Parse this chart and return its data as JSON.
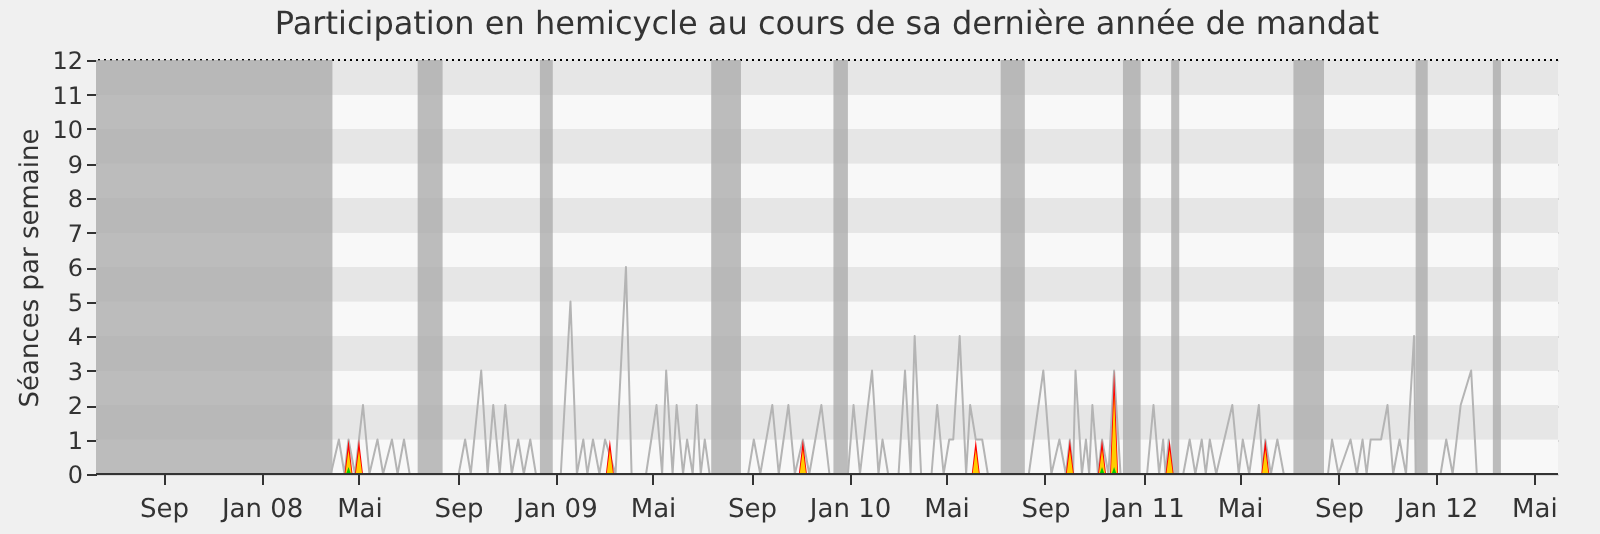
{
  "chart_data": {
    "type": "line",
    "title": "Participation en hemicycle au cours de sa dernière année de mandat",
    "ylabel": "Séances par semaine",
    "xlim": [
      "2007-06-09",
      "2012-05-31"
    ],
    "ylim": [
      0,
      12
    ],
    "yticks": [
      0,
      1,
      2,
      3,
      4,
      5,
      6,
      7,
      8,
      9,
      10,
      11,
      12
    ],
    "xticks": [
      {
        "value": "2007-09-01",
        "label": "Sep"
      },
      {
        "value": "2008-01-01",
        "label": "Jan 08"
      },
      {
        "value": "2008-05-01",
        "label": "Mai"
      },
      {
        "value": "2008-09-01",
        "label": "Sep"
      },
      {
        "value": "2009-01-01",
        "label": "Jan 09"
      },
      {
        "value": "2009-05-01",
        "label": "Mai"
      },
      {
        "value": "2009-09-01",
        "label": "Sep"
      },
      {
        "value": "2010-01-01",
        "label": "Jan 10"
      },
      {
        "value": "2010-05-01",
        "label": "Mai"
      },
      {
        "value": "2010-09-01",
        "label": "Sep"
      },
      {
        "value": "2011-01-01",
        "label": "Jan 11"
      },
      {
        "value": "2011-05-01",
        "label": "Mai"
      },
      {
        "value": "2011-09-01",
        "label": "Sep"
      },
      {
        "value": "2012-01-01",
        "label": "Jan 12"
      },
      {
        "value": "2012-05-01",
        "label": "Mai"
      }
    ],
    "grid": "y",
    "bands": [
      {
        "axis": "x",
        "from": "2007-06-09",
        "to": "2008-03-29",
        "color": "#a8a8a8"
      },
      {
        "axis": "x",
        "from": "2008-07-13",
        "to": "2008-08-13",
        "color": "#a8a8a8"
      },
      {
        "axis": "x",
        "from": "2008-12-12",
        "to": "2008-12-28",
        "color": "#a8a8a8"
      },
      {
        "axis": "x",
        "from": "2009-07-13",
        "to": "2009-08-19",
        "color": "#a8a8a8"
      },
      {
        "axis": "x",
        "from": "2009-12-12",
        "to": "2009-12-30",
        "color": "#a8a8a8"
      },
      {
        "axis": "x",
        "from": "2010-07-08",
        "to": "2010-08-07",
        "color": "#a8a8a8"
      },
      {
        "axis": "x",
        "from": "2010-12-07",
        "to": "2010-12-29",
        "color": "#a8a8a8"
      },
      {
        "axis": "x",
        "from": "2011-02-05",
        "to": "2011-02-15",
        "color": "#a8a8a8"
      },
      {
        "axis": "x",
        "from": "2011-07-07",
        "to": "2011-08-14",
        "color": "#a8a8a8"
      },
      {
        "axis": "x",
        "from": "2011-12-06",
        "to": "2011-12-21",
        "color": "#a8a8a8"
      },
      {
        "axis": "x",
        "from": "2012-03-11",
        "to": "2012-03-21",
        "color": "#a8a8a8"
      }
    ],
    "series": [
      {
        "color": "#b4b4b4",
        "x": [
          "2007-06-09",
          "2008-03-27",
          "2008-04-06",
          "2008-04-13",
          "2008-04-18",
          "2008-04-26",
          "2008-05-01",
          "2008-05-06",
          "2008-05-14",
          "2008-05-24",
          "2008-05-31",
          "2008-06-11",
          "2008-06-18",
          "2008-06-26",
          "2008-07-03",
          "2008-09-02",
          "2008-09-10",
          "2008-09-17",
          "2008-09-30",
          "2008-10-08",
          "2008-10-15",
          "2008-10-23",
          "2008-10-30",
          "2008-11-07",
          "2008-11-15",
          "2008-11-22",
          "2008-11-30",
          "2008-12-07",
          "2009-01-07",
          "2009-01-19",
          "2009-01-27",
          "2009-02-04",
          "2009-02-09",
          "2009-02-16",
          "2009-02-24",
          "2009-03-03",
          "2009-03-16",
          "2009-03-29",
          "2009-04-05",
          "2009-04-23",
          "2009-05-06",
          "2009-05-13",
          "2009-05-18",
          "2009-05-26",
          "2009-05-31",
          "2009-06-08",
          "2009-06-13",
          "2009-06-20",
          "2009-06-25",
          "2009-06-30",
          "2009-07-05",
          "2009-07-11",
          "2009-08-28",
          "2009-09-04",
          "2009-09-12",
          "2009-09-27",
          "2009-10-05",
          "2009-10-17",
          "2009-10-25",
          "2009-11-04",
          "2009-11-12",
          "2009-11-27",
          "2009-12-07",
          "2009-12-30",
          "2010-01-06",
          "2010-01-14",
          "2010-01-29",
          "2010-02-06",
          "2010-02-11",
          "2010-02-18",
          "2010-03-03",
          "2010-03-11",
          "2010-03-18",
          "2010-03-23",
          "2010-03-31",
          "2010-04-13",
          "2010-04-20",
          "2010-04-28",
          "2010-05-05",
          "2010-05-10",
          "2010-05-18",
          "2010-05-26",
          "2010-05-31",
          "2010-06-07",
          "2010-06-15",
          "2010-06-22",
          "2010-08-12",
          "2010-08-30",
          "2010-09-09",
          "2010-09-19",
          "2010-09-27",
          "2010-10-02",
          "2010-10-06",
          "2010-10-09",
          "2010-10-17",
          "2010-10-22",
          "2010-10-26",
          "2010-10-30",
          "2010-11-06",
          "2010-11-11",
          "2010-11-19",
          "2010-11-26",
          "2010-12-04",
          "2011-01-06",
          "2011-01-14",
          "2011-01-21",
          "2011-01-26",
          "2011-01-29",
          "2011-02-02",
          "2011-02-05",
          "2011-02-20",
          "2011-02-28",
          "2011-03-07",
          "2011-03-15",
          "2011-03-20",
          "2011-03-25",
          "2011-04-02",
          "2011-04-22",
          "2011-04-30",
          "2011-05-05",
          "2011-05-13",
          "2011-05-25",
          "2011-05-30",
          "2011-06-02",
          "2011-06-09",
          "2011-06-17",
          "2011-06-25",
          "2011-08-19",
          "2011-08-24",
          "2011-09-01",
          "2011-09-16",
          "2011-09-24",
          "2011-10-01",
          "2011-10-06",
          "2011-10-11",
          "2011-10-16",
          "2011-10-24",
          "2011-11-01",
          "2011-11-08",
          "2011-11-16",
          "2011-11-24",
          "2011-12-04",
          "2011-12-06",
          "2012-01-06",
          "2012-01-13",
          "2012-01-21",
          "2012-01-31",
          "2012-02-13",
          "2012-02-20",
          "2012-05-31"
        ],
        "values": [
          0,
          0,
          1,
          0,
          1,
          0,
          1,
          2,
          0,
          1,
          0,
          1,
          0,
          1,
          0,
          0,
          1,
          0,
          3,
          0,
          2,
          0,
          2,
          0,
          1,
          0,
          1,
          0,
          0,
          5,
          0,
          1,
          0,
          1,
          0,
          1,
          0,
          6,
          0,
          0,
          2,
          0,
          3,
          0,
          2,
          0,
          1,
          0,
          2,
          0,
          1,
          0,
          0,
          1,
          0,
          2,
          0,
          2,
          0,
          1,
          0,
          2,
          0,
          0,
          2,
          0,
          3,
          0,
          1,
          0,
          0,
          3,
          0,
          4,
          0,
          0,
          2,
          0,
          1,
          1,
          4,
          0,
          2,
          1,
          1,
          0,
          0,
          3,
          0,
          1,
          0,
          1,
          0,
          3,
          0,
          1,
          0,
          2,
          0,
          1,
          0,
          3,
          0,
          0,
          2,
          0,
          1,
          0,
          1,
          0,
          0,
          1,
          0,
          1,
          0,
          1,
          0,
          2,
          0,
          1,
          0,
          2,
          0,
          1,
          0,
          1,
          0,
          0,
          1,
          0,
          1,
          0,
          1,
          0,
          1,
          1,
          1,
          2,
          0,
          1,
          0,
          4,
          0,
          0,
          1,
          0,
          2,
          3,
          0,
          0
        ]
      },
      {
        "type": "area",
        "color": "#ff0000",
        "x": [
          "2008-04-13",
          "2008-04-18",
          "2008-04-23",
          "2008-04-26",
          "2008-05-01",
          "2008-05-06",
          "2009-03-04",
          "2009-03-09",
          "2009-03-14",
          "2009-10-30",
          "2009-11-04",
          "2009-11-09",
          "2010-06-02",
          "2010-06-07",
          "2010-06-12",
          "2010-09-27",
          "2010-10-02",
          "2010-10-07",
          "2010-11-06",
          "2010-11-11",
          "2010-11-16",
          "2010-11-21",
          "2010-11-26",
          "2010-12-01",
          "2011-01-29",
          "2011-02-03",
          "2011-02-08",
          "2011-05-28",
          "2011-06-02",
          "2011-06-07"
        ],
        "values": [
          0,
          1,
          0,
          0,
          1,
          0,
          0,
          1,
          0,
          0,
          1,
          0,
          0,
          1,
          0,
          0,
          1,
          0,
          0,
          1,
          0,
          0,
          3,
          0,
          0,
          1,
          0,
          0,
          1,
          0
        ]
      },
      {
        "type": "area",
        "color": "#ffcc00",
        "x": [
          "2008-04-14",
          "2008-04-18",
          "2008-04-22",
          "2008-04-27",
          "2008-05-01",
          "2008-05-05",
          "2009-03-05",
          "2009-03-09",
          "2009-03-13",
          "2009-10-31",
          "2009-11-04",
          "2009-11-08",
          "2010-06-03",
          "2010-06-07",
          "2010-06-11",
          "2010-09-28",
          "2010-10-02",
          "2010-10-06",
          "2010-11-07",
          "2010-11-11",
          "2010-11-15",
          "2010-11-22",
          "2010-11-26",
          "2010-11-30",
          "2011-01-30",
          "2011-02-03",
          "2011-02-07",
          "2011-05-29",
          "2011-06-02",
          "2011-06-06"
        ],
        "values": [
          0,
          0.7,
          0,
          0,
          0.7,
          0,
          0,
          0.7,
          0,
          0,
          0.7,
          0,
          0,
          0.7,
          0,
          0,
          0.7,
          0,
          0,
          0.7,
          0,
          0,
          2.3,
          0,
          0,
          0.7,
          0,
          0,
          0.7,
          0
        ]
      },
      {
        "type": "area",
        "color": "#00cc00",
        "x": [
          "2008-04-15",
          "2008-04-18",
          "2008-04-21",
          "2010-11-08",
          "2010-11-11",
          "2010-11-14",
          "2010-11-23",
          "2010-11-26",
          "2010-11-29"
        ],
        "values": [
          0,
          0.2,
          0,
          0,
          0.2,
          0,
          0,
          0.2,
          0
        ]
      }
    ]
  }
}
